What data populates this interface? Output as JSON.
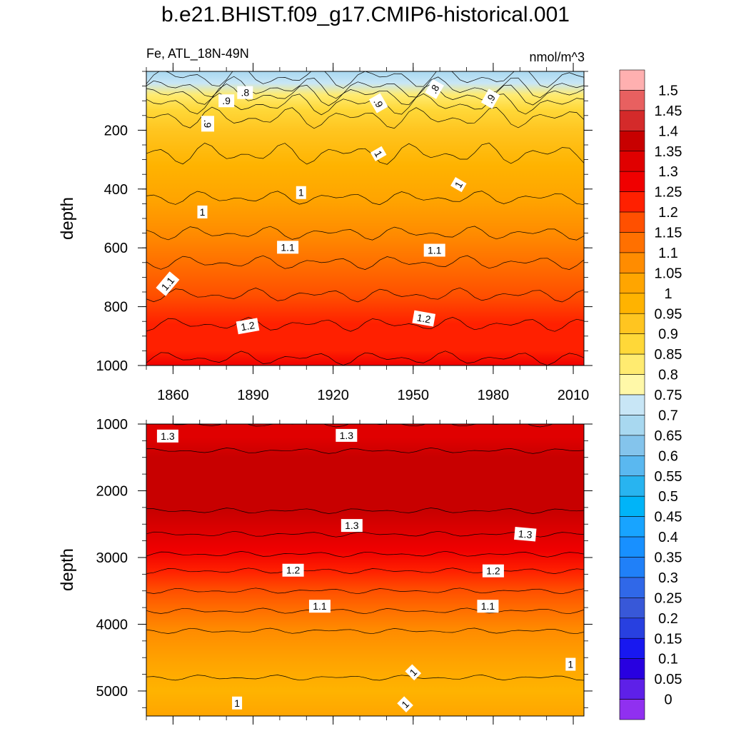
{
  "title": "b.e21.BHIST.f09_g17.CMIP6-historical.001",
  "subtitle_left": "Fe, ATL_18N-49N",
  "subtitle_right": "nmol/m^3",
  "chart_data": [
    {
      "type": "heatmap",
      "panel": "upper",
      "variable": "Fe",
      "units": "nmol/m^3",
      "xlabel": "",
      "ylabel": "depth",
      "xlim": [
        1850,
        2014
      ],
      "ylim": [
        1000,
        0
      ],
      "xticks": [
        1860,
        1890,
        1920,
        1950,
        1980,
        2010
      ],
      "yticks": [
        200,
        400,
        600,
        800,
        1000
      ],
      "profile": [
        {
          "depth": 0,
          "value": 0.68
        },
        {
          "depth": 40,
          "value": 0.72
        },
        {
          "depth": 80,
          "value": 0.8
        },
        {
          "depth": 130,
          "value": 0.88
        },
        {
          "depth": 200,
          "value": 0.93
        },
        {
          "depth": 320,
          "value": 0.96
        },
        {
          "depth": 430,
          "value": 1.0
        },
        {
          "depth": 550,
          "value": 1.05
        },
        {
          "depth": 650,
          "value": 1.1
        },
        {
          "depth": 760,
          "value": 1.15
        },
        {
          "depth": 860,
          "value": 1.2
        },
        {
          "depth": 950,
          "value": 1.24
        },
        {
          "depth": 1000,
          "value": 1.26
        }
      ],
      "contour_labels": [
        {
          "year": 1873,
          "depth": 178,
          "text": ".9",
          "angle": 90
        },
        {
          "year": 1887,
          "depth": 72,
          "text": ".8",
          "angle": 0
        },
        {
          "year": 1880,
          "depth": 100,
          "text": ".9",
          "angle": 0
        },
        {
          "year": 1937,
          "depth": 108,
          "text": ".9",
          "angle": 60
        },
        {
          "year": 1958,
          "depth": 60,
          "text": ".8",
          "angle": -60
        },
        {
          "year": 1979,
          "depth": 93,
          "text": ".9",
          "angle": -60
        },
        {
          "year": 1871,
          "depth": 478,
          "text": "1",
          "angle": 0
        },
        {
          "year": 1908,
          "depth": 412,
          "text": "1",
          "angle": 0
        },
        {
          "year": 1937,
          "depth": 280,
          "text": "1",
          "angle": 60
        },
        {
          "year": 1967,
          "depth": 385,
          "text": "1",
          "angle": -60
        },
        {
          "year": 1903,
          "depth": 598,
          "text": "1.1",
          "angle": 0
        },
        {
          "year": 1958,
          "depth": 608,
          "text": "1.1",
          "angle": 0
        },
        {
          "year": 1858,
          "depth": 722,
          "text": "1.1",
          "angle": -50
        },
        {
          "year": 1888,
          "depth": 866,
          "text": "1.2",
          "angle": -10
        },
        {
          "year": 1954,
          "depth": 840,
          "text": "1.2",
          "angle": 10
        }
      ]
    },
    {
      "type": "heatmap",
      "panel": "lower",
      "variable": "Fe",
      "units": "nmol/m^3",
      "xlabel": "",
      "ylabel": "depth",
      "xlim": [
        1850,
        2014
      ],
      "ylim": [
        5375,
        1000
      ],
      "yticks": [
        1000,
        2000,
        3000,
        4000,
        5000
      ],
      "profile": [
        {
          "depth": 1000,
          "value": 1.3
        },
        {
          "depth": 1200,
          "value": 1.33
        },
        {
          "depth": 1500,
          "value": 1.36
        },
        {
          "depth": 2000,
          "value": 1.38
        },
        {
          "depth": 2300,
          "value": 1.35
        },
        {
          "depth": 2650,
          "value": 1.3
        },
        {
          "depth": 2900,
          "value": 1.26
        },
        {
          "depth": 3200,
          "value": 1.2
        },
        {
          "depth": 3500,
          "value": 1.15
        },
        {
          "depth": 3800,
          "value": 1.1
        },
        {
          "depth": 4100,
          "value": 1.05
        },
        {
          "depth": 4600,
          "value": 1.01
        },
        {
          "depth": 5000,
          "value": 0.99
        },
        {
          "depth": 5375,
          "value": 1.0
        }
      ],
      "contour_labels": [
        {
          "year": 1858,
          "depth": 1180,
          "text": "1.3",
          "angle": 0
        },
        {
          "year": 1925,
          "depth": 1170,
          "text": "1.3",
          "angle": 0
        },
        {
          "year": 1927,
          "depth": 2520,
          "text": "1.3",
          "angle": 0
        },
        {
          "year": 1992,
          "depth": 2650,
          "text": "1.3",
          "angle": 5
        },
        {
          "year": 1905,
          "depth": 3190,
          "text": "1.2",
          "angle": 0
        },
        {
          "year": 1980,
          "depth": 3200,
          "text": "1.2",
          "angle": 0
        },
        {
          "year": 1915,
          "depth": 3730,
          "text": "1.1",
          "angle": 0
        },
        {
          "year": 1978,
          "depth": 3730,
          "text": "1.1",
          "angle": 0
        },
        {
          "year": 1950,
          "depth": 4720,
          "text": "1",
          "angle": -45
        },
        {
          "year": 2009,
          "depth": 4600,
          "text": "1",
          "angle": 0
        },
        {
          "year": 1884,
          "depth": 5180,
          "text": "1",
          "angle": 0
        },
        {
          "year": 1947,
          "depth": 5200,
          "text": "1",
          "angle": -45
        }
      ]
    }
  ],
  "colorbar": {
    "labels": [
      "1.5",
      "1.45",
      "1.4",
      "1.35",
      "1.3",
      "1.25",
      "1.2",
      "1.15",
      "1.1",
      "1.05",
      "1",
      "0.95",
      "0.9",
      "0.85",
      "0.8",
      "0.75",
      "0.7",
      "0.65",
      "0.6",
      "0.55",
      "0.5",
      "0.45",
      "0.4",
      "0.35",
      "0.3",
      "0.25",
      "0.2",
      "0.15",
      "0.1",
      "0.05",
      "0"
    ],
    "colors": [
      "#FFB0B0",
      "#E86060",
      "#D42A2A",
      "#C80000",
      "#E00000",
      "#F00000",
      "#FF2000",
      "#FF5000",
      "#FF7000",
      "#FF8C00",
      "#FFA500",
      "#FFB300",
      "#FFC520",
      "#FFD838",
      "#FFEB70",
      "#FFF8A8",
      "#C8E6F6",
      "#A8D8F0",
      "#84C4EC",
      "#5AB8F0",
      "#28B4F0",
      "#00B4F8",
      "#18A4FF",
      "#1890FF",
      "#2080F8",
      "#3068E8",
      "#3858D8",
      "#2840E0",
      "#1818F0",
      "#2800E0",
      "#5E20E8",
      "#9030F0"
    ]
  }
}
